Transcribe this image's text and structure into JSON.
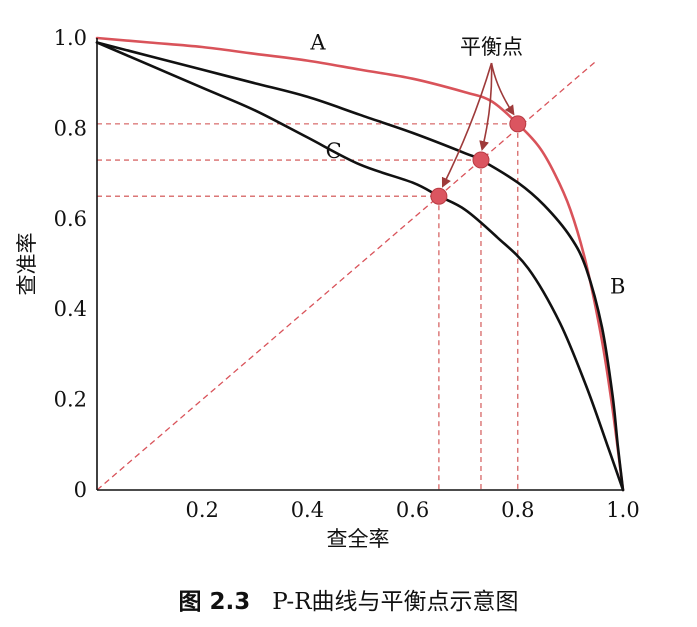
{
  "chart_data": {
    "type": "line",
    "xlabel": "查全率",
    "ylabel": "查准率",
    "xlim": [
      0,
      1
    ],
    "ylim": [
      0,
      1
    ],
    "x_ticks": [
      "0.2",
      "0.4",
      "0.6",
      "0.8",
      "1.0"
    ],
    "y_ticks": [
      "0",
      "0.2",
      "0.4",
      "0.6",
      "0.8",
      "1.0"
    ],
    "series": [
      {
        "name": "A",
        "color": "#d9535a",
        "x": [
          0,
          0.1,
          0.2,
          0.3,
          0.4,
          0.5,
          0.6,
          0.7,
          0.75,
          0.8,
          0.84,
          0.87,
          0.9,
          0.93,
          0.96,
          0.98,
          1.0
        ],
        "y": [
          1.0,
          0.99,
          0.98,
          0.965,
          0.95,
          0.93,
          0.91,
          0.88,
          0.86,
          0.81,
          0.76,
          0.7,
          0.62,
          0.5,
          0.33,
          0.18,
          0.0
        ]
      },
      {
        "name": "B",
        "color": "#111111",
        "x": [
          0,
          0.1,
          0.2,
          0.3,
          0.4,
          0.5,
          0.6,
          0.7,
          0.73,
          0.8,
          0.85,
          0.9,
          0.93,
          0.96,
          0.98,
          0.99,
          1.0
        ],
        "y": [
          0.99,
          0.96,
          0.93,
          0.9,
          0.87,
          0.83,
          0.79,
          0.745,
          0.73,
          0.68,
          0.63,
          0.56,
          0.49,
          0.36,
          0.21,
          0.1,
          0.0
        ]
      },
      {
        "name": "C",
        "color": "#111111",
        "x": [
          0,
          0.1,
          0.2,
          0.3,
          0.4,
          0.5,
          0.6,
          0.65,
          0.7,
          0.76,
          0.82,
          0.88,
          0.93,
          0.97,
          1.0
        ],
        "y": [
          0.99,
          0.94,
          0.89,
          0.84,
          0.78,
          0.72,
          0.68,
          0.65,
          0.62,
          0.56,
          0.49,
          0.37,
          0.23,
          0.1,
          0.0
        ]
      }
    ],
    "diagonal": {
      "x": [
        0,
        0.95
      ],
      "y": [
        0,
        0.95
      ],
      "color": "#d9535a"
    },
    "break_even_points": [
      {
        "curve": "A",
        "x": 0.8,
        "y": 0.81
      },
      {
        "curve": "B",
        "x": 0.73,
        "y": 0.73
      },
      {
        "curve": "C",
        "x": 0.65,
        "y": 0.65
      }
    ],
    "curve_labels": [
      {
        "text": "A",
        "x": 0.42,
        "y": 0.99
      },
      {
        "text": "B",
        "x": 0.99,
        "y": 0.45
      },
      {
        "text": "C",
        "x": 0.45,
        "y": 0.75
      }
    ],
    "annotation": {
      "text": "平衡点",
      "x": 0.75,
      "y": 0.98
    }
  },
  "caption": {
    "number": "图 2.3",
    "text": "P-R曲线与平衡点示意图"
  }
}
